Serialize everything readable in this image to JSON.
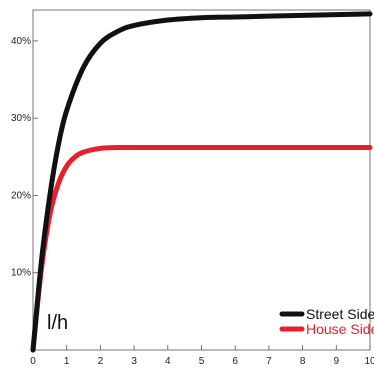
{
  "chart_data": {
    "type": "line",
    "unit_label": "l/h",
    "x_ticks": [
      "0",
      "1",
      "2",
      "3",
      "4",
      "5",
      "6",
      "7",
      "8",
      "9",
      "10"
    ],
    "y_ticks": [
      "10%",
      "20%",
      "30%",
      "40%"
    ],
    "xlim": [
      0,
      10
    ],
    "ylim": [
      0,
      44
    ],
    "grid": false,
    "legend_position": "bottom-right",
    "series": [
      {
        "name": "Street Side",
        "color": "#111111",
        "x": [
          0,
          0.25,
          0.5,
          0.75,
          1,
          1.5,
          2,
          2.5,
          3,
          4,
          5,
          6,
          7,
          8,
          9,
          10
        ],
        "y": [
          0,
          11.5,
          20.0,
          26.5,
          31.0,
          36.6,
          39.7,
          41.2,
          42.0,
          42.7,
          43.0,
          43.1,
          43.2,
          43.3,
          43.4,
          43.5
        ]
      },
      {
        "name": "House Side",
        "color": "#e8202a",
        "x": [
          0,
          0.25,
          0.5,
          0.75,
          1,
          1.25,
          1.5,
          2,
          2.5,
          3,
          4,
          5,
          6,
          7,
          8,
          9,
          10
        ],
        "y": [
          0,
          10.5,
          17.5,
          21.5,
          23.8,
          25.0,
          25.6,
          26.1,
          26.2,
          26.2,
          26.2,
          26.2,
          26.2,
          26.2,
          26.2,
          26.2,
          26.2
        ]
      }
    ]
  }
}
